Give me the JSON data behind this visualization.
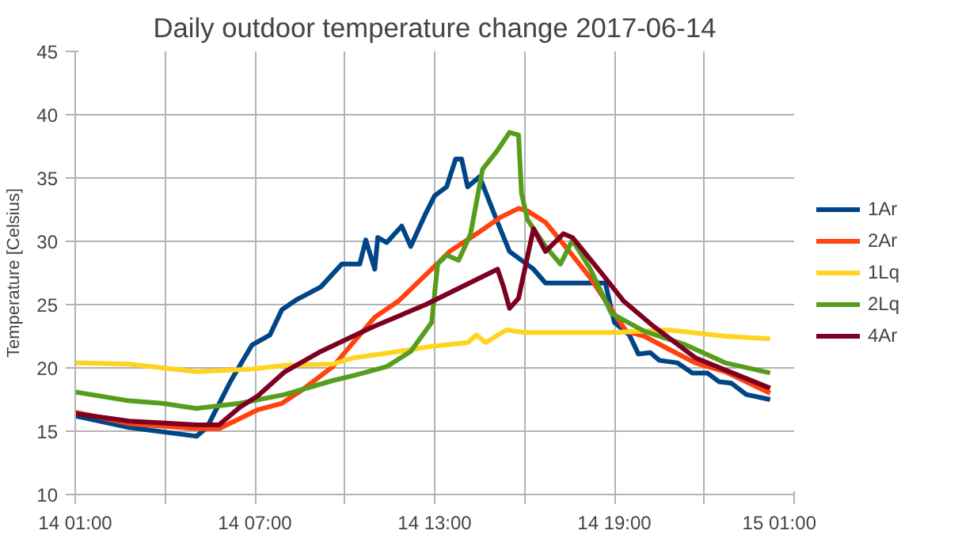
{
  "chart_data": {
    "type": "line",
    "title": "Daily outdoor temperature change 2017-06-14",
    "ylabel": "Temperature [Celsius]",
    "xlim": [
      "2017-06-14T01:00",
      "2017-06-15T01:00"
    ],
    "xticks": [
      {
        "value": "2017-06-14T01:00",
        "label": "14 01:00"
      },
      {
        "value": "2017-06-14T04:00",
        "label": null
      },
      {
        "value": "2017-06-14T07:00",
        "label": "14 07:00"
      },
      {
        "value": "2017-06-14T10:00",
        "label": null
      },
      {
        "value": "2017-06-14T13:00",
        "label": "14 13:00"
      },
      {
        "value": "2017-06-14T16:00",
        "label": null
      },
      {
        "value": "2017-06-14T19:00",
        "label": "14 19:00"
      },
      {
        "value": "2017-06-14T22:00",
        "label": null
      },
      {
        "value": "2017-06-15T01:00",
        "label": "15 01:00"
      }
    ],
    "ylim": [
      10,
      45
    ],
    "yticks": [
      10,
      15,
      20,
      25,
      30,
      35,
      40,
      45
    ],
    "grid": true,
    "legend": "right",
    "marker": "none",
    "line_style": "solid",
    "series": [
      {
        "name": "1Ar",
        "color": "#004586",
        "x": [
          "2017-06-14T01:00",
          "2017-06-14T02:48",
          "2017-06-14T05:03",
          "2017-06-14T05:24",
          "2017-06-14T06:12",
          "2017-06-14T06:54",
          "2017-06-14T07:30",
          "2017-06-14T07:54",
          "2017-06-14T08:24",
          "2017-06-14T09:12",
          "2017-06-14T09:54",
          "2017-06-14T10:30",
          "2017-06-14T10:42",
          "2017-06-14T11:00",
          "2017-06-14T11:06",
          "2017-06-14T11:24",
          "2017-06-14T11:54",
          "2017-06-14T12:12",
          "2017-06-14T12:42",
          "2017-06-14T13:00",
          "2017-06-14T13:24",
          "2017-06-14T13:42",
          "2017-06-14T13:54",
          "2017-06-14T14:06",
          "2017-06-14T14:30",
          "2017-06-14T15:06",
          "2017-06-14T15:30",
          "2017-06-14T16:18",
          "2017-06-14T16:42",
          "2017-06-14T18:42",
          "2017-06-14T19:00",
          "2017-06-14T19:30",
          "2017-06-14T19:48",
          "2017-06-14T20:12",
          "2017-06-14T20:30",
          "2017-06-14T21:06",
          "2017-06-14T21:36",
          "2017-06-14T22:06",
          "2017-06-14T22:30",
          "2017-06-14T22:54",
          "2017-06-14T23:24",
          "2017-06-15T00:12"
        ],
        "values": [
          16.2,
          15.3,
          14.6,
          15.3,
          19,
          21.8,
          22.6,
          24.6,
          25.4,
          26.4,
          28.2,
          28.2,
          30.1,
          27.8,
          30.3,
          29.9,
          31.2,
          29.6,
          32.2,
          33.6,
          34.3,
          36.5,
          36.5,
          34.3,
          35.1,
          31.5,
          29.2,
          27.8,
          26.7,
          26.7,
          23.6,
          22.6,
          21.1,
          21.2,
          20.6,
          20.4,
          19.6,
          19.6,
          18.9,
          18.8,
          17.9,
          17.5
        ]
      },
      {
        "name": "2Ar",
        "color": "#ff420e",
        "x": [
          "2017-06-14T01:00",
          "2017-06-14T02:48",
          "2017-06-14T05:03",
          "2017-06-14T05:48",
          "2017-06-14T06:30",
          "2017-06-14T07:06",
          "2017-06-14T07:54",
          "2017-06-14T08:36",
          "2017-06-14T09:36",
          "2017-06-14T10:30",
          "2017-06-14T11:00",
          "2017-06-14T11:48",
          "2017-06-14T12:54",
          "2017-06-14T13:30",
          "2017-06-14T14:24",
          "2017-06-14T15:12",
          "2017-06-14T15:48",
          "2017-06-14T16:06",
          "2017-06-14T16:42",
          "2017-06-14T17:30",
          "2017-06-14T18:12",
          "2017-06-14T18:54",
          "2017-06-14T19:24",
          "2017-06-14T20:00",
          "2017-06-14T20:48",
          "2017-06-14T21:42",
          "2017-06-14T22:42",
          "2017-06-15T00:12"
        ],
        "values": [
          16.5,
          15.6,
          15.2,
          15.2,
          16,
          16.7,
          17.2,
          18.3,
          20.1,
          22.6,
          24,
          25.3,
          27.8,
          29.2,
          30.6,
          31.9,
          32.6,
          32.4,
          31.5,
          29.2,
          27.1,
          24.6,
          22.9,
          22.5,
          21.5,
          20.4,
          19.7,
          18
        ]
      },
      {
        "name": "1Lq",
        "color": "#ffd320",
        "x": [
          "2017-06-14T01:00",
          "2017-06-14T02:48",
          "2017-06-14T05:03",
          "2017-06-14T06:54",
          "2017-06-14T08:00",
          "2017-06-14T09:36",
          "2017-06-14T10:18",
          "2017-06-14T11:48",
          "2017-06-14T12:54",
          "2017-06-14T14:06",
          "2017-06-14T14:24",
          "2017-06-14T14:42",
          "2017-06-14T15:24",
          "2017-06-14T16:00",
          "2017-06-14T19:00",
          "2017-06-14T20:48",
          "2017-06-14T22:42",
          "2017-06-15T00:12"
        ],
        "values": [
          20.4,
          20.3,
          19.7,
          19.9,
          20.2,
          20.3,
          20.8,
          21.3,
          21.7,
          22,
          22.6,
          22,
          23,
          22.8,
          22.8,
          23,
          22.5,
          22.3
        ]
      },
      {
        "name": "2Lq",
        "color": "#579d1c",
        "x": [
          "2017-06-14T01:00",
          "2017-06-14T02:48",
          "2017-06-14T03:54",
          "2017-06-14T05:03",
          "2017-06-14T06:30",
          "2017-06-14T08:00",
          "2017-06-14T09:36",
          "2017-06-14T10:18",
          "2017-06-14T11:24",
          "2017-06-14T12:12",
          "2017-06-14T12:54",
          "2017-06-14T13:06",
          "2017-06-14T13:24",
          "2017-06-14T13:48",
          "2017-06-14T14:12",
          "2017-06-14T14:36",
          "2017-06-14T15:06",
          "2017-06-14T15:30",
          "2017-06-14T15:48",
          "2017-06-14T15:54",
          "2017-06-14T16:06",
          "2017-06-14T16:42",
          "2017-06-14T17:12",
          "2017-06-14T17:36",
          "2017-06-14T18:12",
          "2017-06-14T18:54",
          "2017-06-14T20:00",
          "2017-06-14T21:24",
          "2017-06-14T22:42",
          "2017-06-15T00:12"
        ],
        "values": [
          18.1,
          17.4,
          17.2,
          16.8,
          17.2,
          17.9,
          19,
          19.4,
          20.1,
          21.3,
          23.6,
          28.2,
          28.9,
          28.5,
          30.6,
          35.7,
          37.2,
          38.6,
          38.4,
          33.8,
          31.7,
          29.6,
          28.2,
          30.1,
          27.8,
          24.3,
          22.9,
          21.8,
          20.4,
          19.6
        ]
      },
      {
        "name": "4Ar",
        "color": "#7e0021",
        "x": [
          "2017-06-14T01:00",
          "2017-06-14T02:48",
          "2017-06-14T05:03",
          "2017-06-14T05:48",
          "2017-06-14T06:30",
          "2017-06-14T07:06",
          "2017-06-14T08:00",
          "2017-06-14T09:12",
          "2017-06-14T10:54",
          "2017-06-14T12:42",
          "2017-06-14T15:06",
          "2017-06-14T15:18",
          "2017-06-14T15:30",
          "2017-06-14T15:48",
          "2017-06-14T16:18",
          "2017-06-14T16:42",
          "2017-06-14T17:18",
          "2017-06-14T17:36",
          "2017-06-14T18:36",
          "2017-06-14T19:18",
          "2017-06-14T20:18",
          "2017-06-14T21:42",
          "2017-06-15T00:12"
        ],
        "values": [
          16.4,
          15.8,
          15.5,
          15.5,
          16.9,
          17.8,
          19.7,
          21.3,
          23.2,
          25,
          27.8,
          26.4,
          24.7,
          25.5,
          31,
          29.2,
          30.6,
          30.3,
          27.4,
          25.3,
          23.3,
          20.8,
          18.4
        ]
      }
    ]
  }
}
